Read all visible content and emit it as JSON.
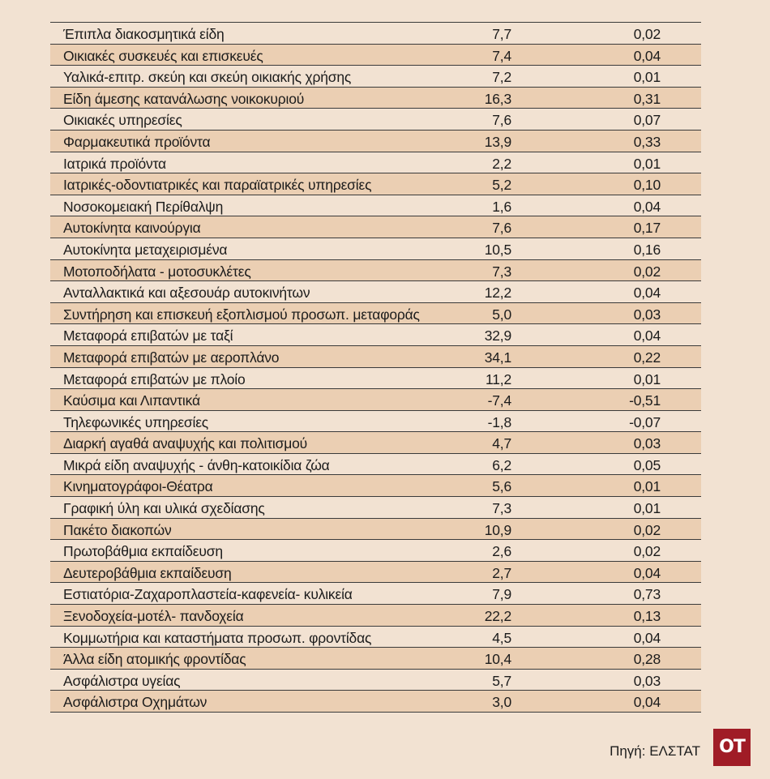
{
  "rows": [
    {
      "name": "Έπιπλα διακοσμητικά είδη",
      "v1": "7,7",
      "v2": "0,02"
    },
    {
      "name": "Οικιακές συσκευές και επισκευές",
      "v1": "7,4",
      "v2": "0,04"
    },
    {
      "name": "Υαλικά-επιτρ. σκεύη και σκεύη οικιακής χρήσης",
      "v1": "7,2",
      "v2": "0,01"
    },
    {
      "name": "Είδη άμεσης κατανάλωσης νοικοκυριού",
      "v1": "16,3",
      "v2": "0,31"
    },
    {
      "name": "Οικιακές υπηρεσίες",
      "v1": "7,6",
      "v2": "0,07"
    },
    {
      "name": "Φαρμακευτικά προϊόντα",
      "v1": "13,9",
      "v2": "0,33"
    },
    {
      "name": "Ιατρικά προϊόντα",
      "v1": "2,2",
      "v2": "0,01"
    },
    {
      "name": "Ιατρικές-οδοντιατρικές και παραϊατρικές υπηρεσίες",
      "v1": "5,2",
      "v2": "0,10"
    },
    {
      "name": "Νοσοκομειακή Περίθαλψη",
      "v1": "1,6",
      "v2": "0,04"
    },
    {
      "name": "Αυτοκίνητα καινούργια",
      "v1": "7,6",
      "v2": "0,17"
    },
    {
      "name": "Αυτοκίνητα μεταχειρισμένα",
      "v1": "10,5",
      "v2": "0,16"
    },
    {
      "name": "Μοτοποδήλατα - μοτοσυκλέτες",
      "v1": "7,3",
      "v2": "0,02"
    },
    {
      "name": "Ανταλλακτικά και αξεσουάρ αυτοκινήτων",
      "v1": "12,2",
      "v2": "0,04"
    },
    {
      "name": "Συντήρηση και επισκευή εξοπλισμού προσωπ. μεταφοράς",
      "v1": "5,0",
      "v2": "0,03"
    },
    {
      "name": "Μεταφορά επιβατών με ταξί",
      "v1": "32,9",
      "v2": "0,04"
    },
    {
      "name": "Μεταφορά επιβατών με αεροπλάνο",
      "v1": "34,1",
      "v2": "0,22"
    },
    {
      "name": "Μεταφορά επιβατών με πλοίο",
      "v1": "11,2",
      "v2": "0,01"
    },
    {
      "name": "Καύσιμα και Λιπαντικά",
      "v1": "-7,4",
      "v2": "-0,51"
    },
    {
      "name": "Τηλεφωνικές υπηρεσίες",
      "v1": "-1,8",
      "v2": "-0,07"
    },
    {
      "name": "Διαρκή αγαθά αναψυχής και πολιτισμού",
      "v1": "4,7",
      "v2": "0,03"
    },
    {
      "name": "Μικρά είδη αναψυχής - άνθη-κατοικίδια ζώα",
      "v1": "6,2",
      "v2": "0,05"
    },
    {
      "name": "Κινηματογράφοι-Θέατρα",
      "v1": "5,6",
      "v2": "0,01"
    },
    {
      "name": "Γραφική ύλη και υλικά σχεδίασης",
      "v1": "7,3",
      "v2": "0,01"
    },
    {
      "name": "Πακέτο διακοπών",
      "v1": "10,9",
      "v2": "0,02"
    },
    {
      "name": "Πρωτοβάθμια εκπαίδευση",
      "v1": "2,6",
      "v2": "0,02"
    },
    {
      "name": "Δευτεροβάθμια εκπαίδευση",
      "v1": "2,7",
      "v2": "0,04"
    },
    {
      "name": "Εστιατόρια-Ζαχαροπλαστεία-καφενεία- κυλικεία",
      "v1": "7,9",
      "v2": "0,73"
    },
    {
      "name": "Ξενοδοχεία-μοτέλ- πανδοχεία",
      "v1": "22,2",
      "v2": "0,13"
    },
    {
      "name": "Κομμωτήρια και καταστήματα προσωπ. φροντίδας",
      "v1": "4,5",
      "v2": "0,04"
    },
    {
      "name": "Άλλα είδη ατομικής φροντίδας",
      "v1": "10,4",
      "v2": "0,28"
    },
    {
      "name": "Ασφάλιστρα υγείας",
      "v1": "5,7",
      "v2": "0,03"
    },
    {
      "name": "Ασφάλιστρα Οχημάτων",
      "v1": "3,0",
      "v2": "0,04"
    }
  ],
  "footer": {
    "source": "Πηγή: ΕΛΣΤΑΤ",
    "logo": "OT"
  },
  "colors": {
    "background": "#f2e2d2",
    "stripe": "#ebcfb3",
    "logo_bg": "#a01c26"
  }
}
